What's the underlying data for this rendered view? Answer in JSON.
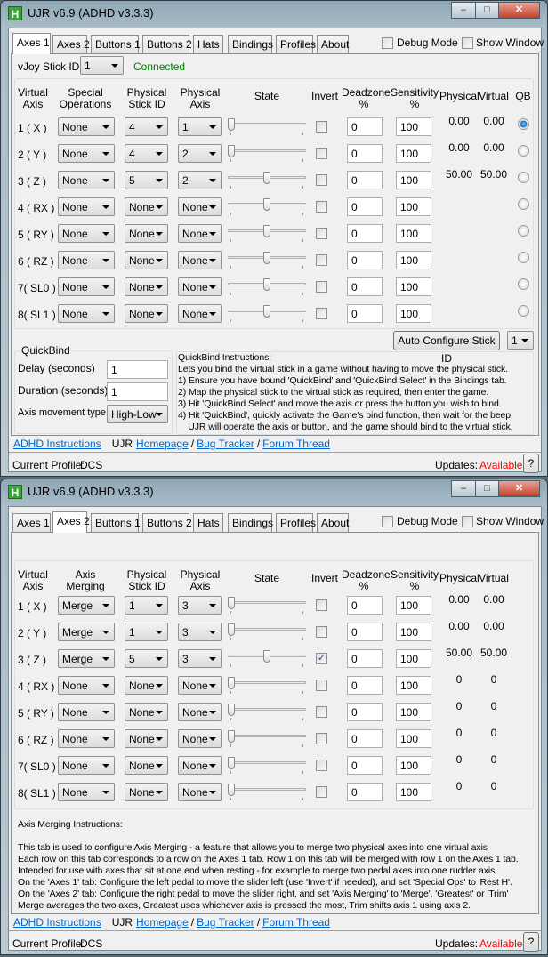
{
  "windows": [
    {
      "title": "UJR v6.9 (ADHD v3.3.3)",
      "tabs": [
        "Axes 1",
        "Axes 2",
        "Buttons 1",
        "Buttons 2",
        "Hats",
        "Bindings",
        "Profiles",
        "About"
      ],
      "active_tab": 0,
      "debug_mode": {
        "label": "Debug Mode",
        "checked": false
      },
      "show_window": {
        "label": "Show Window",
        "checked": false
      },
      "vjoy": {
        "label": "vJoy Stick ID",
        "value": "1",
        "status": "Connected",
        "status_color": "#008000"
      },
      "headers": {
        "virtual_axis": "Virtual Axis",
        "col2": "Special Operations",
        "stick_id": "Physical Stick ID",
        "phys_axis": "Physical Axis",
        "state": "State",
        "invert": "Invert",
        "deadzone": "Deadzone %",
        "sensitivity": "Sensitivity %",
        "physical": "Physical",
        "virtual": "Virtual",
        "qb": "QB"
      },
      "show_qb": true,
      "rows": [
        {
          "axis": "1 ( X )",
          "op": "None",
          "stick": "4",
          "phys_axis": "1",
          "state_pct": 0,
          "invert": false,
          "deadzone": "0",
          "sensitivity": "100",
          "physical": "0.00",
          "virtual": "0.00",
          "qb": true
        },
        {
          "axis": "2 ( Y )",
          "op": "None",
          "stick": "4",
          "phys_axis": "2",
          "state_pct": 0,
          "invert": false,
          "deadzone": "0",
          "sensitivity": "100",
          "physical": "0.00",
          "virtual": "0.00",
          "qb": false
        },
        {
          "axis": "3 ( Z )",
          "op": "None",
          "stick": "5",
          "phys_axis": "2",
          "state_pct": 50,
          "invert": false,
          "deadzone": "0",
          "sensitivity": "100",
          "physical": "50.00",
          "virtual": "50.00",
          "qb": false
        },
        {
          "axis": "4 ( RX )",
          "op": "None",
          "stick": "None",
          "phys_axis": "None",
          "state_pct": 50,
          "invert": false,
          "deadzone": "0",
          "sensitivity": "100",
          "physical": "",
          "virtual": "",
          "qb": false
        },
        {
          "axis": "5 ( RY )",
          "op": "None",
          "stick": "None",
          "phys_axis": "None",
          "state_pct": 50,
          "invert": false,
          "deadzone": "0",
          "sensitivity": "100",
          "physical": "",
          "virtual": "",
          "qb": false
        },
        {
          "axis": "6 ( RZ )",
          "op": "None",
          "stick": "None",
          "phys_axis": "None",
          "state_pct": 50,
          "invert": false,
          "deadzone": "0",
          "sensitivity": "100",
          "physical": "",
          "virtual": "",
          "qb": false
        },
        {
          "axis": "7( SL0 )",
          "op": "None",
          "stick": "None",
          "phys_axis": "None",
          "state_pct": 50,
          "invert": false,
          "deadzone": "0",
          "sensitivity": "100",
          "physical": "",
          "virtual": "",
          "qb": false
        },
        {
          "axis": "8( SL1 )",
          "op": "None",
          "stick": "None",
          "phys_axis": "None",
          "state_pct": 50,
          "invert": false,
          "deadzone": "0",
          "sensitivity": "100",
          "physical": "",
          "virtual": "",
          "qb": false
        }
      ],
      "auto_configure": {
        "label": "Auto Configure Stick ID",
        "value": "1"
      },
      "quickbind": {
        "title": "QuickBind",
        "delay_label": "Delay (seconds)",
        "delay": "1",
        "duration_label": "Duration (seconds)",
        "duration": "1",
        "movement_label": "Axis movement type",
        "movement": "High-Low"
      },
      "instructions": [
        "QuickBind Instructions:",
        "Lets you bind the virtual stick in a game without having to move the physical stick.",
        "1) Ensure you have bound 'QuickBind' and 'QuickBind Select' in the Bindings tab.",
        "2) Map the physical stick to the virtual stick as required, then enter the game.",
        "3) Hit 'QuickBind Select' and move the axis or press the button you wish to bind.",
        "4) Hit 'QuickBind', quickly activate the Game's bind function, then wait for the beep",
        "    UJR will operate the axis or button, and the game should bind to the virtual stick."
      ],
      "links": {
        "adhd": "ADHD Instructions",
        "ujr": "UJR",
        "homepage": "Homepage",
        "bug": "Bug Tracker",
        "forum": "Forum Thread",
        "sep": "/"
      },
      "status": {
        "profile_label": "Current Profile:",
        "profile": "DCS",
        "updates_label": "Updates:",
        "updates": "Available",
        "updates_color": "#ff0000",
        "help": "?"
      }
    },
    {
      "title": "UJR v6.9 (ADHD v3.3.3)",
      "tabs": [
        "Axes 1",
        "Axes 2",
        "Buttons 1",
        "Buttons 2",
        "Hats",
        "Bindings",
        "Profiles",
        "About"
      ],
      "active_tab": 1,
      "debug_mode": {
        "label": "Debug Mode",
        "checked": false
      },
      "show_window": {
        "label": "Show Window",
        "checked": false
      },
      "headers": {
        "virtual_axis": "Virtual Axis",
        "col2": "Axis Merging",
        "stick_id": "Physical Stick ID",
        "phys_axis": "Physical Axis",
        "state": "State",
        "invert": "Invert",
        "deadzone": "Deadzone %",
        "sensitivity": "Sensitivity %",
        "physical": "Physical",
        "virtual": "Virtual",
        "qb": "QB"
      },
      "show_qb": false,
      "rows": [
        {
          "axis": "1 ( X )",
          "op": "Merge",
          "stick": "1",
          "phys_axis": "3",
          "state_pct": 0,
          "invert": false,
          "deadzone": "0",
          "sensitivity": "100",
          "physical": "0.00",
          "virtual": "0.00"
        },
        {
          "axis": "2 ( Y )",
          "op": "Merge",
          "stick": "1",
          "phys_axis": "3",
          "state_pct": 0,
          "invert": false,
          "deadzone": "0",
          "sensitivity": "100",
          "physical": "0.00",
          "virtual": "0.00"
        },
        {
          "axis": "3 ( Z )",
          "op": "Merge",
          "stick": "5",
          "phys_axis": "3",
          "state_pct": 50,
          "invert": true,
          "deadzone": "0",
          "sensitivity": "100",
          "physical": "50.00",
          "virtual": "50.00"
        },
        {
          "axis": "4 ( RX )",
          "op": "None",
          "stick": "None",
          "phys_axis": "None",
          "state_pct": 0,
          "invert": false,
          "deadzone": "0",
          "sensitivity": "100",
          "physical": "0",
          "virtual": "0"
        },
        {
          "axis": "5 ( RY )",
          "op": "None",
          "stick": "None",
          "phys_axis": "None",
          "state_pct": 0,
          "invert": false,
          "deadzone": "0",
          "sensitivity": "100",
          "physical": "0",
          "virtual": "0"
        },
        {
          "axis": "6 ( RZ )",
          "op": "None",
          "stick": "None",
          "phys_axis": "None",
          "state_pct": 0,
          "invert": false,
          "deadzone": "0",
          "sensitivity": "100",
          "physical": "0",
          "virtual": "0"
        },
        {
          "axis": "7( SL0 )",
          "op": "None",
          "stick": "None",
          "phys_axis": "None",
          "state_pct": 0,
          "invert": false,
          "deadzone": "0",
          "sensitivity": "100",
          "physical": "0",
          "virtual": "0"
        },
        {
          "axis": "8( SL1 )",
          "op": "None",
          "stick": "None",
          "phys_axis": "None",
          "state_pct": 0,
          "invert": false,
          "deadzone": "0",
          "sensitivity": "100",
          "physical": "0",
          "virtual": "0"
        }
      ],
      "instructions": [
        "Axis Merging Instructions:",
        "",
        "This tab is used to configure Axis Merging - a feature that allows you to merge two physical axes into one virtual axis",
        "Each row on this tab corresponds to a row on the Axes 1 tab. Row 1 on this tab will be merged with row 1 on the Axes 1 tab.",
        "Intended for use with axes that sit at one end when resting - for example to merge two pedal axes into one rudder axis.",
        "On the 'Axes 1' tab: Configure the left pedal to move the slider left (use 'Invert' if needed), and set 'Special Ops' to 'Rest H'.",
        "On the 'Axes 2' tab: Configure the right pedal to move the slider right, and set 'Axis Merging' to 'Merge', 'Greatest' or 'Trim' .",
        "Merge averages the two axes, Greatest uses whichever axis is pressed the most, Trim shifts axis 1 using axis 2."
      ],
      "links": {
        "adhd": "ADHD Instructions",
        "ujr": "UJR",
        "homepage": "Homepage",
        "bug": "Bug Tracker",
        "forum": "Forum Thread",
        "sep": "/"
      },
      "status": {
        "profile_label": "Current Profile:",
        "profile": "DCS",
        "updates_label": "Updates:",
        "updates": "Available",
        "updates_color": "#ff0000",
        "help": "?"
      }
    }
  ]
}
